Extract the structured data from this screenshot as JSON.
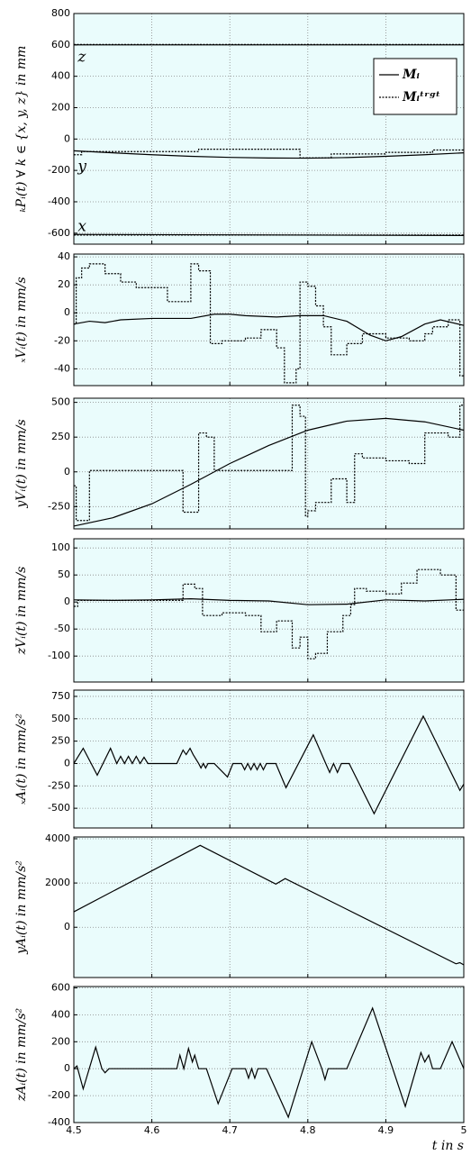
{
  "chart_data": [
    {
      "type": "line",
      "ylabel": "ₖPᵢ(t) ∀ k ∈ {x, y, z} in mm",
      "xlim": [
        4.5,
        5
      ],
      "xticks": [
        4.5,
        4.6,
        4.7,
        4.8,
        4.9,
        5
      ],
      "show_xtick_labels": false,
      "ylim": [
        -670,
        800
      ],
      "yticks": [
        800,
        600,
        400,
        200,
        0,
        -200,
        -400,
        -600
      ],
      "grid": true,
      "legend": "upper right",
      "annotations": [
        {
          "text": "z",
          "x": 4.505,
          "y": 520
        },
        {
          "text": "y",
          "x": 4.505,
          "y": -180
        },
        {
          "text": "x",
          "x": 4.505,
          "y": -560
        }
      ],
      "series": [
        {
          "color": "#000000",
          "dash": "solid",
          "x": [
            4.5,
            5
          ],
          "values": [
            600,
            600
          ]
        },
        {
          "color": "#000000",
          "dash": "dotted",
          "step": true,
          "x": [
            4.5,
            5
          ],
          "values": [
            603,
            603
          ]
        },
        {
          "name": "Mᵢ",
          "color": "#000000",
          "dash": "solid",
          "x": [
            4.5,
            4.55,
            4.6,
            4.65,
            4.7,
            4.75,
            4.8,
            4.85,
            4.9,
            4.95,
            5
          ],
          "values": [
            -75,
            -88,
            -100,
            -110,
            -117,
            -121,
            -122,
            -118,
            -110,
            -100,
            -88
          ]
        },
        {
          "name": "Mᵢᵗʳᵍᵗ",
          "color": "#000000",
          "dash": "dotted",
          "step": true,
          "x": [
            4.5,
            4.51,
            4.66,
            4.79,
            4.83,
            4.9,
            4.96,
            5
          ],
          "values": [
            -100,
            -80,
            -65,
            -120,
            -95,
            -85,
            -70,
            -70
          ]
        },
        {
          "color": "#000000",
          "dash": "solid",
          "x": [
            4.5,
            5
          ],
          "values": [
            -608,
            -615
          ]
        },
        {
          "color": "#000000",
          "dash": "dotted",
          "step": true,
          "x": [
            4.5,
            5
          ],
          "values": [
            -612,
            -612
          ]
        }
      ]
    },
    {
      "type": "line",
      "ylabel": "ₓVᵢ(t) in mm/s",
      "xlim": [
        4.5,
        5
      ],
      "xticks": [
        4.5,
        4.6,
        4.7,
        4.8,
        4.9,
        5
      ],
      "show_xtick_labels": false,
      "ylim": [
        -52,
        42
      ],
      "yticks": [
        40,
        20,
        0,
        -20,
        -40
      ],
      "grid": true,
      "series": [
        {
          "color": "#000000",
          "dash": "solid",
          "x": [
            4.5,
            4.52,
            4.54,
            4.56,
            4.6,
            4.65,
            4.68,
            4.7,
            4.72,
            4.76,
            4.79,
            4.82,
            4.85,
            4.88,
            4.9,
            4.92,
            4.95,
            4.97,
            5
          ],
          "values": [
            -8,
            -6,
            -7,
            -5,
            -4,
            -4,
            -1,
            -1,
            -2,
            -3,
            -2,
            -2,
            -6,
            -16,
            -20,
            -17,
            -8,
            -5,
            -9
          ]
        },
        {
          "color": "#000000",
          "dash": "dotted",
          "step": true,
          "x": [
            4.5,
            4.503,
            4.51,
            4.52,
            4.54,
            4.56,
            4.58,
            4.62,
            4.65,
            4.66,
            4.675,
            4.69,
            4.72,
            4.74,
            4.76,
            4.77,
            4.785,
            4.79,
            4.8,
            4.81,
            4.82,
            4.83,
            4.85,
            4.87,
            4.9,
            4.93,
            4.95,
            4.96,
            4.98,
            4.995,
            5
          ],
          "values": [
            -8,
            25,
            32,
            35,
            28,
            22,
            18,
            8,
            35,
            30,
            -22,
            -20,
            -18,
            -12,
            -25,
            -50,
            -40,
            22,
            19,
            5,
            -10,
            -30,
            -22,
            -15,
            -18,
            -20,
            -15,
            -10,
            -5,
            -45,
            -45
          ]
        }
      ]
    },
    {
      "type": "line",
      "ylabel": "yVᵢ(t) in mm/s",
      "xlim": [
        4.5,
        5
      ],
      "xticks": [
        4.5,
        4.6,
        4.7,
        4.8,
        4.9,
        5
      ],
      "show_xtick_labels": false,
      "ylim": [
        -410,
        530
      ],
      "yticks": [
        500,
        250,
        0,
        -250
      ],
      "grid": true,
      "series": [
        {
          "color": "#000000",
          "dash": "solid",
          "x": [
            4.5,
            4.55,
            4.6,
            4.65,
            4.7,
            4.75,
            4.8,
            4.85,
            4.9,
            4.95,
            5
          ],
          "values": [
            -390,
            -330,
            -230,
            -90,
            60,
            190,
            300,
            365,
            385,
            360,
            300
          ]
        },
        {
          "color": "#000000",
          "dash": "dotted",
          "step": true,
          "x": [
            4.5,
            4.503,
            4.52,
            4.64,
            4.66,
            4.67,
            4.68,
            4.78,
            4.79,
            4.797,
            4.8,
            4.81,
            4.83,
            4.85,
            4.86,
            4.87,
            4.9,
            4.93,
            4.95,
            4.98,
            4.995,
            5
          ],
          "values": [
            -100,
            -350,
            10,
            -290,
            280,
            250,
            10,
            480,
            400,
            -320,
            -280,
            -220,
            -50,
            -220,
            130,
            100,
            80,
            60,
            280,
            250,
            480,
            480
          ]
        }
      ]
    },
    {
      "type": "line",
      "ylabel": "zVᵢ(t) in mm/s",
      "xlim": [
        4.5,
        5
      ],
      "xticks": [
        4.5,
        4.6,
        4.7,
        4.8,
        4.9,
        5
      ],
      "show_xtick_labels": false,
      "ylim": [
        -148,
        117
      ],
      "yticks": [
        100,
        50,
        0,
        -50,
        -100
      ],
      "grid": true,
      "series": [
        {
          "color": "#000000",
          "dash": "solid",
          "x": [
            4.5,
            4.55,
            4.6,
            4.65,
            4.7,
            4.75,
            4.8,
            4.85,
            4.9,
            4.95,
            5
          ],
          "values": [
            4,
            3,
            4,
            6,
            3,
            2,
            -5,
            -4,
            4,
            2,
            5
          ]
        },
        {
          "color": "#000000",
          "dash": "dotted",
          "step": true,
          "x": [
            4.5,
            4.505,
            4.64,
            4.655,
            4.665,
            4.69,
            4.72,
            4.74,
            4.76,
            4.78,
            4.79,
            4.8,
            4.81,
            4.825,
            4.845,
            4.855,
            4.86,
            4.875,
            4.9,
            4.92,
            4.94,
            4.97,
            4.99,
            5
          ],
          "values": [
            -8,
            3,
            33,
            25,
            -25,
            -20,
            -25,
            -55,
            -35,
            -85,
            -65,
            -105,
            -95,
            -55,
            -25,
            -5,
            25,
            20,
            15,
            35,
            60,
            50,
            -15,
            -15
          ]
        }
      ]
    },
    {
      "type": "line",
      "ylabel": "ₓAᵢ(t) in mm/s²",
      "xlim": [
        4.5,
        5
      ],
      "xticks": [
        4.5,
        4.6,
        4.7,
        4.8,
        4.9,
        5
      ],
      "show_xtick_labels": false,
      "ylim": [
        -720,
        820
      ],
      "yticks": [
        750,
        500,
        250,
        0,
        -250,
        -500
      ],
      "grid": true,
      "series": [
        {
          "color": "#000000",
          "dash": "solid",
          "x": [
            4.5,
            4.512,
            4.53,
            4.547,
            4.555,
            4.56,
            4.565,
            4.57,
            4.575,
            4.58,
            4.585,
            4.59,
            4.595,
            4.632,
            4.64,
            4.644,
            4.649,
            4.653,
            4.66,
            4.663,
            4.666,
            4.669,
            4.672,
            4.68,
            4.697,
            4.704,
            4.715,
            4.719,
            4.723,
            4.727,
            4.731,
            4.735,
            4.739,
            4.743,
            4.747,
            4.759,
            4.772,
            4.807,
            4.823,
            4.828,
            4.833,
            4.838,
            4.843,
            4.853,
            4.885,
            4.948,
            4.995,
            5
          ],
          "values": [
            0,
            170,
            -130,
            170,
            0,
            80,
            0,
            80,
            0,
            80,
            0,
            70,
            0,
            0,
            150,
            100,
            170,
            100,
            0,
            -50,
            0,
            -50,
            0,
            0,
            -150,
            0,
            0,
            -70,
            0,
            -70,
            0,
            -70,
            0,
            -70,
            0,
            0,
            -270,
            320,
            0,
            -100,
            0,
            -100,
            0,
            0,
            -560,
            530,
            -300,
            -230
          ]
        }
      ]
    },
    {
      "type": "line",
      "ylabel": "yAᵢ(t) in mm/s²",
      "xlim": [
        4.5,
        5
      ],
      "xticks": [
        4.5,
        4.6,
        4.7,
        4.8,
        4.9,
        5
      ],
      "show_xtick_labels": false,
      "ylim": [
        -2270,
        4080
      ],
      "yticks": [
        4000,
        2000,
        0
      ],
      "grid": true,
      "series": [
        {
          "color": "#000000",
          "dash": "solid",
          "x": [
            4.5,
            4.662,
            4.759,
            4.771,
            4.99,
            4.995,
            5
          ],
          "values": [
            700,
            3700,
            1950,
            2200,
            -1650,
            -1600,
            -1700
          ]
        }
      ]
    },
    {
      "type": "line",
      "ylabel": "zAᵢ(t) in mm/s²",
      "xlabel": "t  in s",
      "xlim": [
        4.5,
        5
      ],
      "xticks": [
        4.5,
        4.6,
        4.7,
        4.8,
        4.9,
        5
      ],
      "show_xtick_labels": true,
      "ylim": [
        -400,
        610
      ],
      "yticks": [
        600,
        400,
        200,
        0,
        -200,
        -400
      ],
      "grid": true,
      "series": [
        {
          "color": "#000000",
          "dash": "solid",
          "x": [
            4.5,
            4.504,
            4.512,
            4.528,
            4.536,
            4.54,
            4.545,
            4.632,
            4.636,
            4.641,
            4.647,
            4.652,
            4.655,
            4.66,
            4.67,
            4.685,
            4.703,
            4.72,
            4.724,
            4.728,
            4.732,
            4.736,
            4.747,
            4.775,
            4.805,
            4.818,
            4.822,
            4.826,
            4.85,
            4.883,
            4.925,
            4.939,
            4.945,
            4.95,
            4.955,
            4.96,
            4.97,
            4.985,
            5
          ],
          "values": [
            0,
            20,
            -150,
            160,
            0,
            -30,
            0,
            0,
            100,
            0,
            150,
            50,
            100,
            0,
            0,
            -260,
            0,
            0,
            -70,
            0,
            -70,
            0,
            0,
            -360,
            200,
            0,
            -80,
            0,
            0,
            450,
            -280,
            0,
            120,
            50,
            100,
            0,
            0,
            200,
            0
          ]
        }
      ]
    }
  ]
}
